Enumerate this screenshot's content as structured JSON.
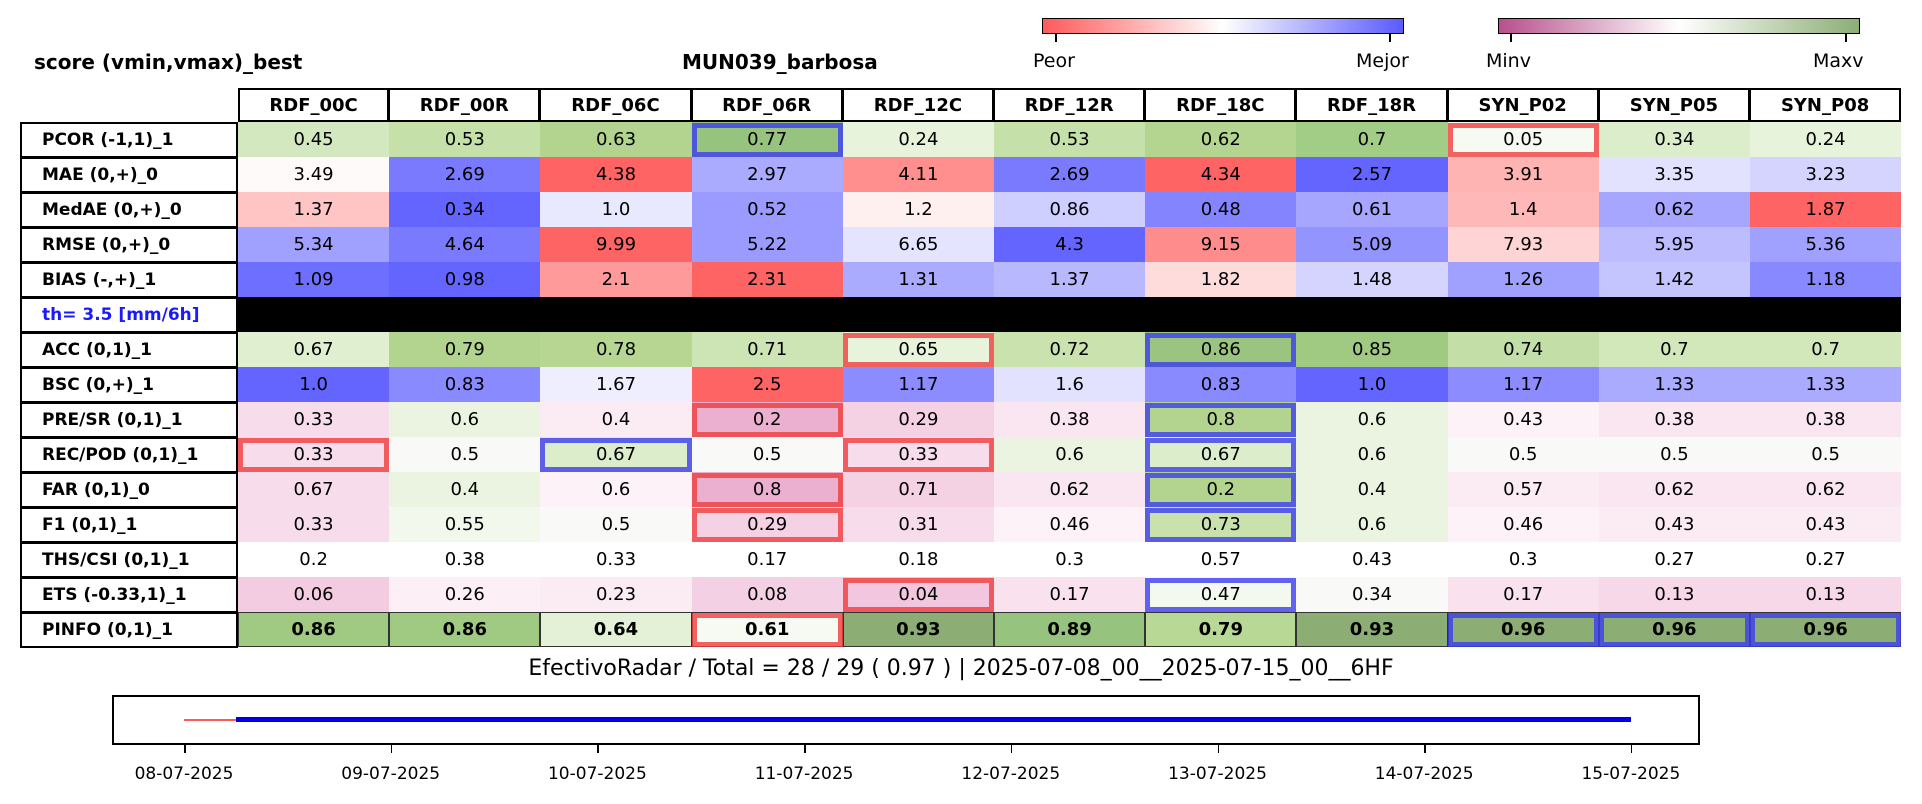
{
  "title_left": "score (vmin,vmax)_best",
  "title_center": "MUN039_barbosa",
  "colorbar_score": {
    "low_label": "Peor",
    "high_label": "Mejor",
    "colors": [
      "#ff5a5a",
      "#ffffff",
      "#5a5aff"
    ]
  },
  "colorbar_info": {
    "low_label": "Minv",
    "high_label": "Maxv",
    "colors": [
      "#b8508c",
      "#ffffff",
      "#8cae74"
    ]
  },
  "chart_data": {
    "type": "table",
    "columns": [
      "RDF_00C",
      "RDF_00R",
      "RDF_06C",
      "RDF_06R",
      "RDF_12C",
      "RDF_12R",
      "RDF_18C",
      "RDF_18R",
      "SYN_P02",
      "SYN_P05",
      "SYN_P08"
    ],
    "separator_label": "th= 3.5 [mm/6h]",
    "rows": [
      {
        "label": "PCOR (-1,1)_1",
        "values": [
          "0.45",
          "0.53",
          "0.63",
          "0.77",
          "0.24",
          "0.53",
          "0.62",
          "0.7",
          "0.05",
          "0.34",
          "0.24"
        ],
        "colors": [
          "#d4e8c0",
          "#c5e0a8",
          "#b2d48e",
          "#96c47e",
          "#e8f3dc",
          "#c5e0a8",
          "#b4d590",
          "#a2cd86",
          "#f7faf3",
          "#dcedcc",
          "#e8f3dc"
        ],
        "best": [
          3
        ],
        "worst": [
          8
        ]
      },
      {
        "label": "MAE (0,+)_0",
        "values": [
          "3.49",
          "2.69",
          "4.38",
          "2.97",
          "4.11",
          "2.69",
          "4.34",
          "2.57",
          "3.91",
          "3.35",
          "3.23"
        ],
        "colors": [
          "#fffafa",
          "#7a7aff",
          "#ff6464",
          "#aaaaff",
          "#ff8e8e",
          "#7a7aff",
          "#ff6464",
          "#6464ff",
          "#ffb4b4",
          "#e2e2ff",
          "#d4d4ff"
        ],
        "best": [],
        "worst": []
      },
      {
        "label": "MedAE (0,+)_0",
        "values": [
          "1.37",
          "0.34",
          "1.0",
          "0.52",
          "1.2",
          "0.86",
          "0.48",
          "0.61",
          "1.4",
          "0.62",
          "1.87"
        ],
        "colors": [
          "#ffc4c4",
          "#6464ff",
          "#e8e8ff",
          "#9a9aff",
          "#fff0f0",
          "#cfcfff",
          "#8484ff",
          "#a6a6ff",
          "#ffb8b8",
          "#a6a6ff",
          "#ff6464"
        ],
        "best": [],
        "worst": []
      },
      {
        "label": "RMSE (0,+)_0",
        "values": [
          "5.34",
          "4.64",
          "9.99",
          "5.22",
          "6.65",
          "4.3",
          "9.15",
          "5.09",
          "7.93",
          "5.95",
          "5.36"
        ],
        "colors": [
          "#a0a0ff",
          "#7a7aff",
          "#ff6464",
          "#9a9aff",
          "#e4e4ff",
          "#6464ff",
          "#ff8c8c",
          "#9494ff",
          "#ffd4d4",
          "#bcbcff",
          "#a0a0ff"
        ],
        "best": [],
        "worst": []
      },
      {
        "label": "BIAS (-,+)_1",
        "values": [
          "1.09",
          "0.98",
          "2.1",
          "2.31",
          "1.31",
          "1.37",
          "1.82",
          "1.48",
          "1.26",
          "1.42",
          "1.18"
        ],
        "colors": [
          "#6e6eff",
          "#6464ff",
          "#ff9a9a",
          "#ff6464",
          "#aaaaff",
          "#b8b8ff",
          "#ffdcdc",
          "#d4d4ff",
          "#a0a0ff",
          "#c4c4ff",
          "#8888ff"
        ],
        "best": [],
        "worst": []
      },
      {
        "separator": true
      },
      {
        "label": "ACC (0,1)_1",
        "values": [
          "0.67",
          "0.79",
          "0.78",
          "0.71",
          "0.65",
          "0.72",
          "0.86",
          "0.85",
          "0.74",
          "0.7",
          "0.7"
        ],
        "colors": [
          "#e0efd0",
          "#b2d48e",
          "#b6d692",
          "#cde4b4",
          "#e8f3dc",
          "#c9e2ae",
          "#9ac480",
          "#a0c982",
          "#c3dea6",
          "#d2e7ba",
          "#d2e7ba"
        ],
        "best": [
          6
        ],
        "worst": [
          4
        ]
      },
      {
        "label": "BSC (0,+)_1",
        "values": [
          "1.0",
          "0.83",
          "1.67",
          "2.5",
          "1.17",
          "1.6",
          "0.83",
          "1.0",
          "1.17",
          "1.33",
          "1.33"
        ],
        "colors": [
          "#6464ff",
          "#8a8aff",
          "#eeeeff",
          "#ff6464",
          "#8c8cff",
          "#e2e2ff",
          "#8a8aff",
          "#6464ff",
          "#8c8cff",
          "#aaaaff",
          "#aaaaff"
        ],
        "best": [],
        "worst": []
      },
      {
        "label": "PRE/SR (0,1)_1",
        "values": [
          "0.33",
          "0.6",
          "0.4",
          "0.2",
          "0.29",
          "0.38",
          "0.8",
          "0.6",
          "0.43",
          "0.38",
          "0.38"
        ],
        "colors": [
          "#f7dcec",
          "#eaf4e0",
          "#fbecf4",
          "#ebb0d0",
          "#f4d2e4",
          "#f9e6f1",
          "#b2d48e",
          "#eaf4e0",
          "#fcf2f7",
          "#f9e6f1",
          "#f9e6f1"
        ],
        "best": [
          6
        ],
        "worst": [
          3
        ]
      },
      {
        "label": "REC/POD (0,1)_1",
        "values": [
          "0.33",
          "0.5",
          "0.67",
          "0.5",
          "0.33",
          "0.6",
          "0.67",
          "0.6",
          "0.5",
          "0.5",
          "0.5"
        ],
        "colors": [
          "#f7dcec",
          "#f9f9f7",
          "#dcedcc",
          "#f9f9f7",
          "#f7dcec",
          "#eaf4e0",
          "#dcedcc",
          "#eaf4e0",
          "#f9f9f7",
          "#f9f9f7",
          "#f9f9f7"
        ],
        "best": [
          2,
          6
        ],
        "worst": [
          0,
          4
        ]
      },
      {
        "label": "FAR (0,1)_0",
        "values": [
          "0.67",
          "0.4",
          "0.6",
          "0.8",
          "0.71",
          "0.62",
          "0.2",
          "0.4",
          "0.57",
          "0.62",
          "0.62"
        ],
        "colors": [
          "#f7dcec",
          "#eaf4e0",
          "#fcf2f7",
          "#ebb0d0",
          "#f4d2e4",
          "#f9e6f1",
          "#b2d48e",
          "#eaf4e0",
          "#fbecf4",
          "#f9e6f1",
          "#f9e6f1"
        ],
        "best": [
          6
        ],
        "worst": [
          3
        ]
      },
      {
        "label": "F1 (0,1)_1",
        "values": [
          "0.33",
          "0.55",
          "0.5",
          "0.29",
          "0.31",
          "0.46",
          "0.73",
          "0.6",
          "0.46",
          "0.43",
          "0.43"
        ],
        "colors": [
          "#f7dcec",
          "#f2f8ec",
          "#f9f9f7",
          "#f4d2e4",
          "#f7dcec",
          "#fcf2f7",
          "#c8e1ad",
          "#eaf4e0",
          "#fcf2f7",
          "#fbecf4",
          "#fbecf4"
        ],
        "best": [
          6
        ],
        "worst": [
          3
        ]
      },
      {
        "label": "THS/CSI (0,1)_1",
        "values": [
          "0.2",
          "0.38",
          "0.33",
          "0.17",
          "0.18",
          "0.3",
          "0.57",
          "0.43",
          "0.3",
          "0.27",
          "0.27"
        ],
        "colors": [
          "#ffffff",
          "#ffffff",
          "#ffffff",
          "#ffffff",
          "#ffffff",
          "#ffffff",
          "#ffffff",
          "#ffffff",
          "#ffffff",
          "#ffffff",
          "#ffffff"
        ],
        "best": [],
        "worst": []
      },
      {
        "label": "ETS (-0.33,1)_1",
        "values": [
          "0.06",
          "0.26",
          "0.23",
          "0.08",
          "0.04",
          "0.17",
          "0.47",
          "0.34",
          "0.17",
          "0.13",
          "0.13"
        ],
        "colors": [
          "#f4cce2",
          "#fcf0f6",
          "#fbecf4",
          "#f4d0e4",
          "#f2c6de",
          "#f9e2ee",
          "#f4f9ef",
          "#f9f9f7",
          "#f9e2ee",
          "#f7d8e8",
          "#f7d8e8"
        ],
        "best": [
          6
        ],
        "worst": [
          4
        ]
      },
      {
        "label": "PINFO (0,1)_1",
        "bold": true,
        "values": [
          "0.86",
          "0.86",
          "0.64",
          "0.61",
          "0.93",
          "0.89",
          "0.79",
          "0.93",
          "0.96",
          "0.96",
          "0.96"
        ],
        "colors": [
          "#a0c982",
          "#a0c982",
          "#e4f1d6",
          "#f7faf3",
          "#8cae74",
          "#96c47e",
          "#b8d896",
          "#8cae74",
          "#8cae74",
          "#8cae74",
          "#8cae74"
        ],
        "best": [
          8,
          9,
          10
        ],
        "worst": [
          3
        ]
      }
    ]
  },
  "footer_text": "EfectivoRadar / Total  =  28 / 29 ( 0.97 ) | 2025-07-08_00__2025-07-15_00__6HF",
  "timeline": {
    "tick_labels": [
      "08-07-2025",
      "09-07-2025",
      "10-07-2025",
      "11-07-2025",
      "12-07-2025",
      "13-07-2025",
      "14-07-2025",
      "15-07-2025"
    ],
    "missing_color": "#ff5a5a",
    "valid_color": "#0000e6",
    "missing_span_days": [
      0,
      0.25
    ],
    "valid_span_days": [
      0.25,
      7
    ]
  },
  "frame_colors": {
    "best": "#3c3cf0",
    "worst": "#f03c3c"
  }
}
